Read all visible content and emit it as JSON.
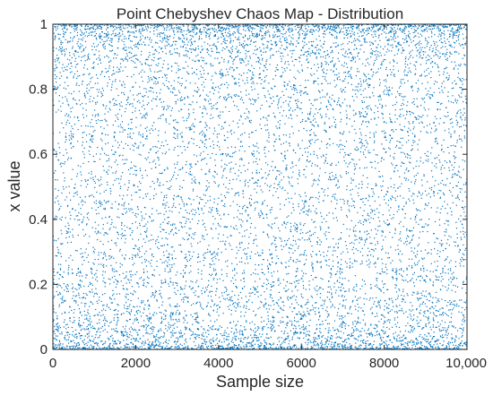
{
  "chart_data": {
    "type": "scatter",
    "title": "Point Chebyshev Chaos Map - Distribution",
    "xlabel": "Sample size",
    "ylabel": "x value",
    "xlim": [
      0,
      10000
    ],
    "ylim": [
      0,
      1
    ],
    "xticks": [
      0,
      2000,
      4000,
      6000,
      8000,
      10000
    ],
    "xtick_labels": [
      "0",
      "2000",
      "4000",
      "6000",
      "8000",
      "10,000"
    ],
    "yticks": [
      0,
      0.2,
      0.4,
      0.6,
      0.8,
      1
    ],
    "ytick_labels": [
      "0",
      "0.2",
      "0.4",
      "0.6",
      "0.8",
      "1"
    ],
    "grid": false,
    "legend": "none",
    "series": [
      {
        "n_points": 10000,
        "x_start": 1,
        "x_step": 1,
        "generator": "chebyshev",
        "order": 4,
        "color": "#0072BD",
        "marker": "point"
      }
    ]
  }
}
